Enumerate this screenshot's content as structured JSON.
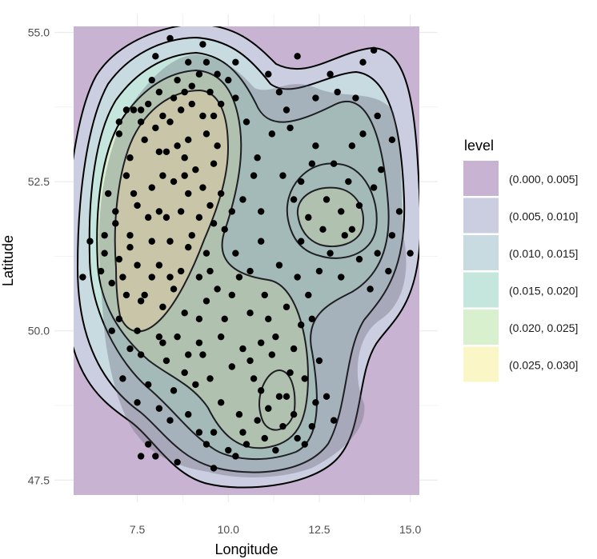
{
  "chart_data": {
    "type": "density-contour",
    "xlabel": "Longitude",
    "ylabel": "Latitude",
    "xlim": [
      5.75,
      15.25
    ],
    "ylim": [
      47.25,
      55.1
    ],
    "x_ticks": [
      {
        "value": 7.5,
        "label": "7.5"
      },
      {
        "value": 10,
        "label": "10.0"
      },
      {
        "value": 12.5,
        "label": "12.5"
      },
      {
        "value": 15,
        "label": "15.0"
      }
    ],
    "y_ticks": [
      {
        "value": 47.5,
        "label": "47.5"
      },
      {
        "value": 50,
        "label": "50.0"
      },
      {
        "value": 52.5,
        "label": "52.5"
      },
      {
        "value": 55,
        "label": "55.0"
      }
    ],
    "grid": true,
    "legend": {
      "title": "level",
      "position": "right",
      "entries": [
        {
          "label": "(0.000, 0.005]",
          "color": "#c8b4d2"
        },
        {
          "label": "(0.005, 0.010]",
          "color": "#cbcde0"
        },
        {
          "label": "(0.010, 0.015]",
          "color": "#c7dbe1"
        },
        {
          "label": "(0.015, 0.020]",
          "color": "#c5e6dd"
        },
        {
          "label": "(0.020, 0.025]",
          "color": "#d9f0cf"
        },
        {
          "label": "(0.025, 0.030]",
          "color": "#fbf6c6"
        }
      ]
    },
    "points": [
      [
        8.4,
        54.9
      ],
      [
        9.3,
        54.8
      ],
      [
        8.0,
        54.6
      ],
      [
        8.9,
        54.5
      ],
      [
        10.2,
        54.5
      ],
      [
        9.7,
        54.3
      ],
      [
        8.6,
        54.2
      ],
      [
        9.2,
        54.3
      ],
      [
        8.1,
        54.0
      ],
      [
        8.5,
        53.9
      ],
      [
        9.0,
        54.1
      ],
      [
        9.5,
        54.0
      ],
      [
        10.0,
        54.2
      ],
      [
        7.2,
        53.7
      ],
      [
        7.4,
        53.7
      ],
      [
        7.6,
        53.7
      ],
      [
        7.8,
        53.8
      ],
      [
        8.2,
        53.6
      ],
      [
        8.7,
        53.7
      ],
      [
        9.3,
        53.6
      ],
      [
        9.8,
        53.8
      ],
      [
        7.0,
        53.5
      ],
      [
        7.6,
        53.5
      ],
      [
        8.0,
        53.4
      ],
      [
        8.4,
        53.5
      ],
      [
        8.9,
        53.2
      ],
      [
        9.4,
        53.3
      ],
      [
        9.7,
        53.1
      ],
      [
        8.3,
        53.0
      ],
      [
        8.8,
        52.9
      ],
      [
        9.1,
        52.7
      ],
      [
        9.6,
        52.8
      ],
      [
        7.2,
        52.6
      ],
      [
        7.9,
        52.4
      ],
      [
        8.5,
        52.5
      ],
      [
        8.9,
        52.3
      ],
      [
        9.3,
        52.4
      ],
      [
        9.8,
        52.3
      ],
      [
        7.5,
        52.1
      ],
      [
        8.1,
        52.0
      ],
      [
        8.7,
        52.0
      ],
      [
        9.2,
        51.9
      ],
      [
        9.6,
        51.8
      ],
      [
        6.9,
        51.8
      ],
      [
        7.3,
        51.6
      ],
      [
        7.9,
        51.5
      ],
      [
        8.4,
        51.5
      ],
      [
        8.9,
        51.4
      ],
      [
        9.4,
        51.3
      ],
      [
        6.6,
        51.3
      ],
      [
        7.0,
        51.2
      ],
      [
        7.5,
        51.1
      ],
      [
        8.1,
        51.1
      ],
      [
        8.7,
        51.0
      ],
      [
        9.2,
        50.9
      ],
      [
        6.8,
        50.8
      ],
      [
        7.2,
        50.6
      ],
      [
        7.6,
        50.5
      ],
      [
        8.2,
        50.4
      ],
      [
        8.8,
        50.3
      ],
      [
        9.4,
        50.5
      ],
      [
        7.0,
        50.2
      ],
      [
        7.5,
        50.0
      ],
      [
        8.1,
        49.9
      ],
      [
        8.6,
        49.9
      ],
      [
        9.2,
        49.8
      ],
      [
        9.8,
        49.9
      ],
      [
        7.6,
        49.6
      ],
      [
        8.3,
        49.5
      ],
      [
        8.8,
        49.3
      ],
      [
        9.5,
        49.2
      ],
      [
        10.1,
        49.4
      ],
      [
        10.6,
        49.5
      ],
      [
        11.2,
        49.6
      ],
      [
        11.8,
        49.7
      ],
      [
        12.1,
        49.2
      ],
      [
        12.4,
        48.8
      ],
      [
        11.5,
        48.4
      ],
      [
        11.0,
        48.2
      ],
      [
        10.5,
        48.1
      ],
      [
        10.0,
        48.0
      ],
      [
        9.2,
        48.3
      ],
      [
        8.4,
        48.5
      ],
      [
        7.8,
        48.1
      ],
      [
        7.6,
        47.9
      ],
      [
        8.6,
        47.8
      ],
      [
        9.6,
        47.7
      ],
      [
        10.4,
        48.3
      ],
      [
        11.3,
        48.0
      ],
      [
        12.1,
        48.1
      ],
      [
        11.1,
        48.7
      ],
      [
        11.4,
        48.9
      ],
      [
        10.9,
        49.0
      ],
      [
        12.3,
        48.4
      ],
      [
        12.7,
        48.9
      ],
      [
        11.7,
        49.3
      ],
      [
        10.6,
        50.3
      ],
      [
        11.1,
        50.2
      ],
      [
        11.6,
        50.4
      ],
      [
        11.9,
        50.9
      ],
      [
        12.5,
        51.0
      ],
      [
        13.1,
        50.9
      ],
      [
        13.6,
        51.2
      ],
      [
        14.1,
        51.3
      ],
      [
        13.2,
        51.6
      ],
      [
        12.6,
        51.7
      ],
      [
        12.2,
        51.9
      ],
      [
        12.7,
        52.2
      ],
      [
        13.1,
        52.0
      ],
      [
        13.6,
        52.1
      ],
      [
        14.0,
        52.4
      ],
      [
        13.3,
        52.5
      ],
      [
        12.9,
        52.8
      ],
      [
        12.4,
        53.1
      ],
      [
        13.7,
        53.3
      ],
      [
        14.1,
        53.6
      ],
      [
        13.5,
        53.9
      ],
      [
        12.8,
        54.3
      ],
      [
        11.7,
        53.4
      ],
      [
        11.2,
        53.3
      ],
      [
        10.8,
        52.9
      ],
      [
        11.6,
        53.7
      ],
      [
        12.4,
        53.9
      ],
      [
        13.7,
        54.5
      ],
      [
        14.0,
        54.7
      ],
      [
        11.9,
        54.6
      ],
      [
        11.1,
        54.3
      ],
      [
        10.7,
        52.6
      ],
      [
        10.1,
        52.0
      ],
      [
        10.9,
        51.5
      ],
      [
        11.4,
        51.1
      ],
      [
        10.6,
        51.0
      ],
      [
        10.2,
        51.3
      ],
      [
        9.9,
        51.7
      ],
      [
        11.8,
        52.2
      ],
      [
        12.0,
        51.5
      ],
      [
        15.0,
        51.3
      ],
      [
        14.5,
        51.6
      ],
      [
        14.7,
        52.0
      ],
      [
        14.2,
        52.7
      ],
      [
        13.4,
        53.1
      ],
      [
        12.2,
        50.6
      ],
      [
        11.0,
        50.6
      ],
      [
        10.3,
        50.9
      ],
      [
        9.7,
        50.7
      ],
      [
        9.9,
        50.2
      ],
      [
        10.4,
        49.7
      ],
      [
        9.2,
        50.2
      ],
      [
        8.5,
        50.7
      ],
      [
        7.9,
        50.9
      ],
      [
        7.3,
        51.4
      ],
      [
        7.8,
        51.9
      ],
      [
        8.2,
        52.6
      ],
      [
        8.6,
        53.1
      ],
      [
        9.0,
        53.8
      ],
      [
        8.8,
        54.0
      ],
      [
        7.9,
        54.2
      ],
      [
        7.0,
        53.3
      ],
      [
        6.7,
        52.3
      ],
      [
        6.5,
        51.0
      ],
      [
        6.8,
        50.0
      ],
      [
        7.3,
        49.7
      ],
      [
        7.1,
        49.2
      ],
      [
        7.8,
        49.1
      ],
      [
        8.5,
        49.0
      ],
      [
        9.1,
        49.1
      ],
      [
        9.8,
        48.8
      ],
      [
        10.3,
        48.6
      ],
      [
        10.8,
        48.5
      ],
      [
        9.6,
        48.3
      ],
      [
        8.9,
        48.6
      ],
      [
        8.1,
        48.7
      ],
      [
        7.5,
        48.8
      ],
      [
        8.0,
        47.9
      ],
      [
        9.4,
        48.1
      ],
      [
        10.2,
        47.9
      ],
      [
        11.8,
        48.6
      ],
      [
        12.5,
        49.5
      ],
      [
        12.0,
        50.1
      ],
      [
        11.3,
        49.9
      ],
      [
        10.9,
        49.8
      ],
      [
        10.1,
        50.6
      ],
      [
        9.5,
        51.0
      ],
      [
        8.3,
        51.9
      ],
      [
        8.8,
        52.6
      ],
      [
        9.5,
        52.1
      ],
      [
        9.0,
        51.6
      ],
      [
        8.4,
        50.9
      ],
      [
        7.7,
        50.6
      ],
      [
        7.4,
        52.3
      ],
      [
        7.7,
        53.2
      ],
      [
        8.1,
        53.0
      ],
      [
        9.4,
        54.5
      ],
      [
        9.6,
        53.6
      ],
      [
        10.5,
        53.5
      ],
      [
        10.2,
        53.9
      ],
      [
        11.4,
        54.0
      ],
      [
        12.0,
        52.5
      ],
      [
        12.8,
        51.3
      ],
      [
        13.9,
        50.7
      ],
      [
        14.4,
        51.0
      ],
      [
        13.0,
        54.0
      ],
      [
        14.5,
        53.2
      ],
      [
        12.3,
        52.8
      ],
      [
        11.5,
        52.6
      ],
      [
        10.4,
        52.2
      ],
      [
        10.9,
        52.0
      ],
      [
        7.1,
        50.9
      ],
      [
        6.6,
        51.6
      ],
      [
        6.2,
        51.5
      ],
      [
        6.0,
        50.9
      ],
      [
        6.9,
        52.0
      ],
      [
        7.3,
        52.9
      ],
      [
        8.9,
        49.6
      ],
      [
        9.3,
        49.6
      ],
      [
        8.2,
        49.8
      ],
      [
        10.7,
        49.2
      ],
      [
        11.9,
        48.2
      ],
      [
        11.6,
        48.9
      ],
      [
        12.9,
        48.5
      ],
      [
        13.4,
        51.7
      ],
      [
        12.3,
        50.2
      ]
    ]
  }
}
